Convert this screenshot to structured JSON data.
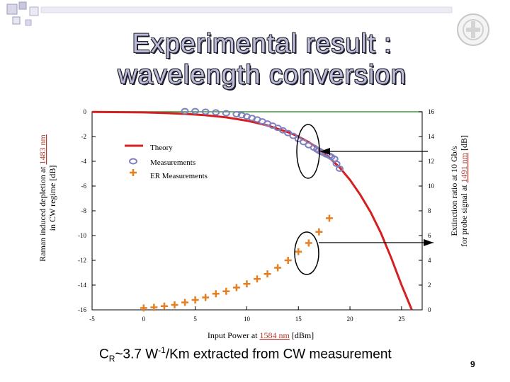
{
  "slide": {
    "title_line1": "Experimental result :",
    "title_line2": "wavelength conversion",
    "formula_prefix": "C",
    "formula_sub": "R",
    "formula_mid": "~3.7  W",
    "formula_sup": "-1",
    "formula_suffix": "/Km extracted from CW measurement",
    "page_number": "9"
  },
  "chart_data": {
    "type": "scatter",
    "x_label_pre": "Input Power at ",
    "x_label_link": "1584 nm",
    "x_label_post": " [dBm]",
    "y_left_label_line1_pre": "Raman induced depletion at ",
    "y_left_label_line1_link": "1483 nm",
    "y_left_label_line2": "in CW regime [dB]",
    "y_right_label_line1": "Extinction ratio at 10 Gb/s",
    "y_right_label_line2_pre": "for probe signal  at ",
    "y_right_label_line2_link": "1491 nm",
    "y_right_label_line2_post": " [dB]",
    "xlim": [
      -5,
      27
    ],
    "ylim_left": [
      -16,
      0
    ],
    "ylim_right": [
      0,
      16
    ],
    "x_ticks": [
      -5,
      0,
      5,
      10,
      15,
      20,
      25
    ],
    "y_left_ticks": [
      0,
      -2,
      -4,
      -6,
      -8,
      -10,
      -12,
      -14,
      -16
    ],
    "y_right_ticks": [
      16,
      14,
      12,
      10,
      8,
      6,
      4,
      2,
      0
    ],
    "legend": [
      "Theory",
      "Measurements",
      "ER Measurements"
    ],
    "legend_position": "upper-left",
    "colors": {
      "theory": "#d42020",
      "measurements": "#8080c0",
      "er": "#e67e22"
    },
    "series": [
      {
        "name": "Theory",
        "axis": "left",
        "x": [
          -5,
          0,
          2,
          4,
          6,
          8,
          10,
          12,
          14,
          15,
          16,
          17,
          18,
          19,
          20,
          21,
          22,
          23,
          24,
          25,
          26
        ],
        "y": [
          -0.02,
          -0.05,
          -0.1,
          -0.17,
          -0.28,
          -0.45,
          -0.72,
          -1.1,
          -1.65,
          -2.0,
          -2.45,
          -3.0,
          -3.7,
          -4.5,
          -5.5,
          -6.7,
          -8.1,
          -9.8,
          -11.8,
          -14.0,
          -16.0
        ]
      },
      {
        "name": "Measurements",
        "axis": "left",
        "x": [
          4,
          5,
          6,
          7,
          8,
          9,
          9.5,
          10,
          10.5,
          11,
          11.5,
          12,
          12.5,
          13,
          13.5,
          14,
          14.5,
          15,
          15.5,
          16,
          16.5,
          16.8,
          17,
          17.2,
          17.5,
          17.7,
          18,
          18.2,
          18.5,
          18.7,
          19
        ],
        "y": [
          0.05,
          0.05,
          0.0,
          -0.05,
          -0.12,
          -0.2,
          -0.28,
          -0.38,
          -0.5,
          -0.62,
          -0.78,
          -0.95,
          -1.12,
          -1.3,
          -1.5,
          -1.72,
          -1.95,
          -2.2,
          -2.45,
          -2.7,
          -2.9,
          -3.05,
          -3.15,
          -3.25,
          -3.35,
          -3.45,
          -3.55,
          -3.65,
          -3.8,
          -4.2,
          -4.6
        ]
      },
      {
        "name": "ER Measurements",
        "axis": "right",
        "x": [
          0,
          1,
          2,
          3,
          4,
          5,
          6,
          7,
          8,
          9,
          10,
          11,
          12,
          13,
          14,
          15,
          16,
          17,
          18
        ],
        "y": [
          0.15,
          0.2,
          0.3,
          0.4,
          0.6,
          0.8,
          1.0,
          1.3,
          1.5,
          1.8,
          2.1,
          2.5,
          2.9,
          3.4,
          4.0,
          4.7,
          5.4,
          6.3,
          7.4
        ]
      }
    ]
  }
}
